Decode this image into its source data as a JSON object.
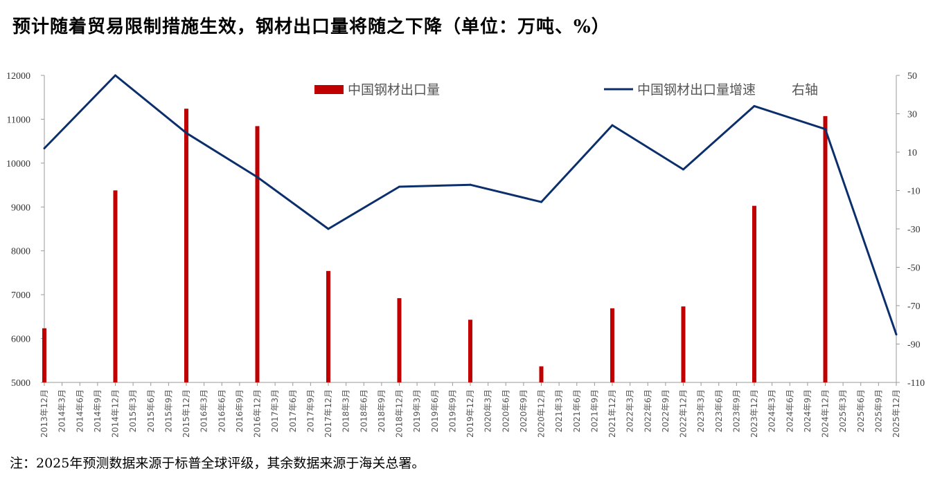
{
  "title": "预计随着贸易限制措施生效，钢材出口量将随之下降（单位：万吨、%）",
  "note": "注：2025年预测数据来源于标普全球评级，其余数据来源于海关总署。",
  "chart_data": {
    "type": "bar",
    "categories": [
      "2013年12月",
      "2014年3月",
      "2014年6月",
      "2014年9月",
      "2014年12月",
      "2015年3月",
      "2015年6月",
      "2015年9月",
      "2015年12月",
      "2016年3月",
      "2016年6月",
      "2016年9月",
      "2016年12月",
      "2017年3月",
      "2017年6月",
      "2017年9月",
      "2017年12月",
      "2018年3月",
      "2018年6月",
      "2018年9月",
      "2018年12月",
      "2019年3月",
      "2019年6月",
      "2019年9月",
      "2019年12月",
      "2020年3月",
      "2020年6月",
      "2020年9月",
      "2020年12月",
      "2021年3月",
      "2021年6月",
      "2021年9月",
      "2021年12月",
      "2022年3月",
      "2022年6月",
      "2022年9月",
      "2022年12月",
      "2023年3月",
      "2023年6月",
      "2023年9月",
      "2023年12月",
      "2024年3月",
      "2024年6月",
      "2024年9月",
      "2024年12月",
      "2025年3月",
      "2025年6月",
      "2025年9月",
      "2025年12月"
    ],
    "series": [
      {
        "name": "中国钢材出口量",
        "axis": "left",
        "type": "bar",
        "color": "#c00000",
        "points": [
          {
            "x": "2013年12月",
            "y": 6234
          },
          {
            "x": "2014年12月",
            "y": 9378
          },
          {
            "x": "2015年12月",
            "y": 11240
          },
          {
            "x": "2016年12月",
            "y": 10843
          },
          {
            "x": "2017年12月",
            "y": 7541
          },
          {
            "x": "2018年12月",
            "y": 6921
          },
          {
            "x": "2019年12月",
            "y": 6429
          },
          {
            "x": "2020年12月",
            "y": 5367
          },
          {
            "x": "2021年12月",
            "y": 6690
          },
          {
            "x": "2022年12月",
            "y": 6732
          },
          {
            "x": "2023年12月",
            "y": 9026
          },
          {
            "x": "2024年12月",
            "y": 11072
          }
        ]
      },
      {
        "name": "中国钢材出口量增速",
        "legend_suffix": "右轴",
        "axis": "right",
        "type": "line",
        "color": "#0b2f6b",
        "points": [
          {
            "x": "2013年12月",
            "y": 12
          },
          {
            "x": "2014年12月",
            "y": 50
          },
          {
            "x": "2015年12月",
            "y": 20
          },
          {
            "x": "2016年12月",
            "y": -3
          },
          {
            "x": "2017年12月",
            "y": -30
          },
          {
            "x": "2018年12月",
            "y": -8
          },
          {
            "x": "2019年12月",
            "y": -7
          },
          {
            "x": "2020年12月",
            "y": -16
          },
          {
            "x": "2021年12月",
            "y": 24
          },
          {
            "x": "2022年12月",
            "y": 1
          },
          {
            "x": "2023年12月",
            "y": 34
          },
          {
            "x": "2024年12月",
            "y": 22
          },
          {
            "x": "2025年12月",
            "y": -85
          }
        ]
      }
    ],
    "y_left": {
      "min": 5000,
      "max": 12000,
      "ticks": [
        5000,
        6000,
        7000,
        8000,
        9000,
        10000,
        11000,
        12000
      ]
    },
    "y_right": {
      "min": -110,
      "max": 50,
      "ticks": [
        -110,
        -90,
        -70,
        -50,
        -30,
        -10,
        10,
        30,
        50
      ]
    },
    "legend": "top-center",
    "grid": false
  }
}
